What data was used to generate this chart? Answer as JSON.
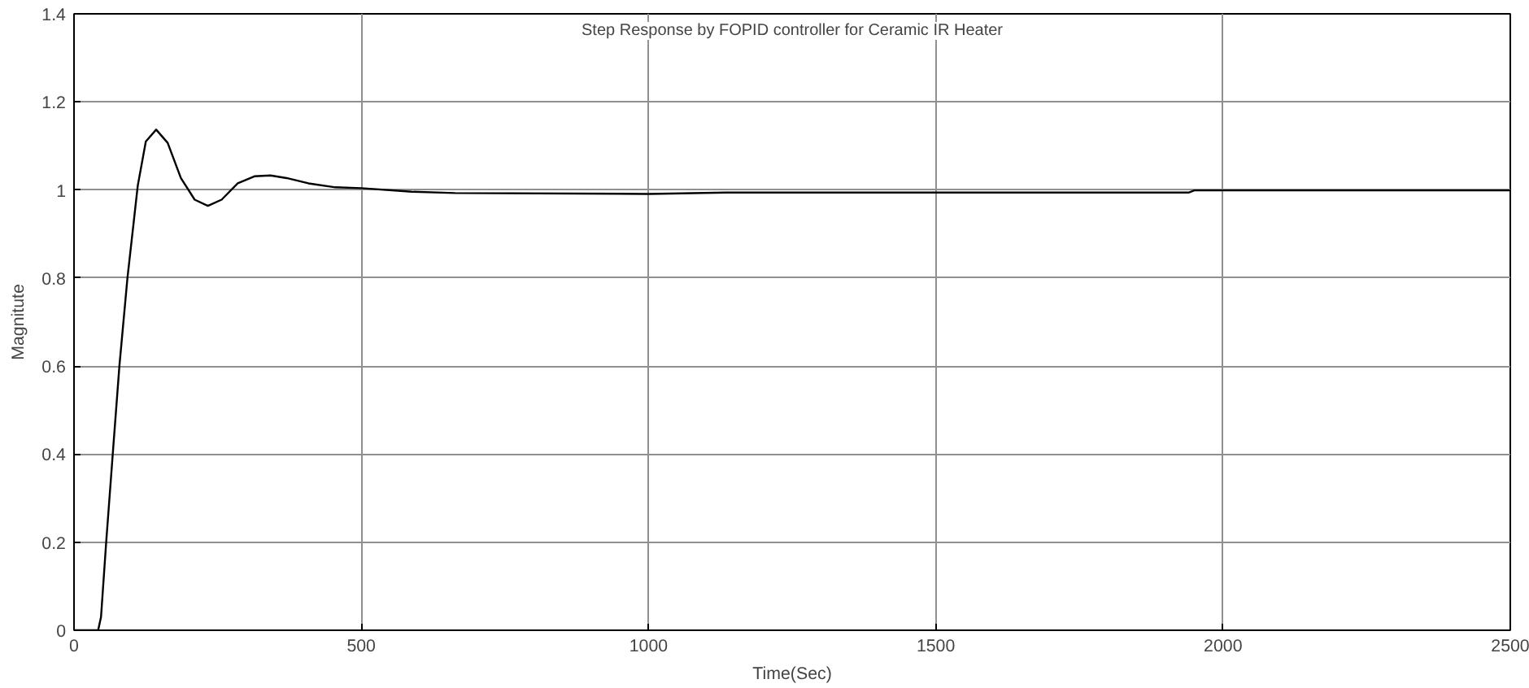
{
  "chart_data": {
    "type": "line",
    "title": "Step Response by FOPID controller for Ceramic IR Heater",
    "xlabel": "Time(Sec)",
    "ylabel": "Magnitute",
    "x": [
      0,
      42,
      47,
      56,
      68,
      79,
      93,
      111,
      125,
      143,
      163,
      186,
      210,
      233,
      257,
      285,
      314,
      342,
      370,
      408,
      455,
      500,
      588,
      663,
      1000,
      1136,
      1940,
      1950,
      2500
    ],
    "series": [
      {
        "color": "#000000",
        "values": [
          0,
          0,
          0.03,
          0.2,
          0.41,
          0.6,
          0.8,
          1.01,
          1.11,
          1.137,
          1.107,
          1.027,
          0.978,
          0.964,
          0.978,
          1.015,
          1.031,
          1.033,
          1.027,
          1.015,
          1.006,
          1.004,
          0.996,
          0.993,
          0.991,
          0.994,
          0.994,
          0.999,
          0.999
        ]
      }
    ],
    "xlim": [
      0,
      2500
    ],
    "ylim": [
      0,
      1.4
    ],
    "xticks": [
      0,
      500,
      1000,
      1500,
      2000,
      2500
    ],
    "yticks": [
      0,
      0.2,
      0.4,
      0.6,
      0.8,
      1,
      1.2,
      1.4
    ],
    "grid": true,
    "marker": "none",
    "line_style": "solid"
  }
}
